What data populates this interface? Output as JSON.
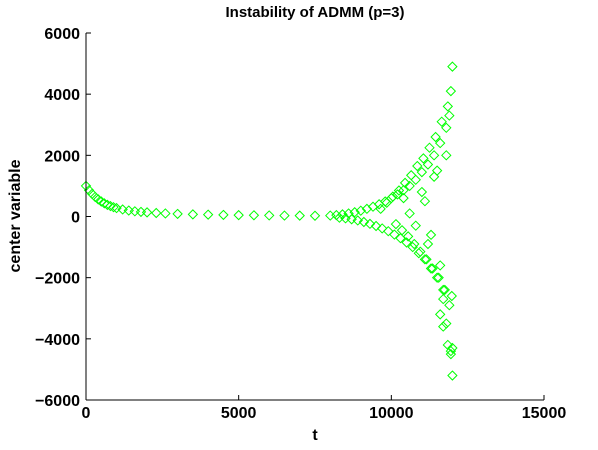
{
  "chart_data": {
    "type": "scatter",
    "title": "Instability of ADMM (p=3)",
    "xlabel": "t",
    "ylabel": "center variable",
    "xlim": [
      0,
      15000
    ],
    "ylim": [
      -6000,
      6000
    ],
    "x_ticks": [
      "0",
      "5000",
      "10000",
      "15000"
    ],
    "y_ticks": [
      "6000",
      "4000",
      "2000",
      "0",
      "−2000",
      "−4000",
      "−6000"
    ],
    "x_tick_values": [
      0,
      5000,
      10000,
      15000
    ],
    "y_tick_values": [
      6000,
      4000,
      2000,
      0,
      -2000,
      -4000,
      -6000
    ],
    "marker": "diamond",
    "grid": false,
    "legend": "none",
    "color": "#00ff00",
    "series": [
      {
        "x": [
          0,
          100,
          200,
          300,
          400,
          500,
          600,
          700,
          800,
          900,
          1000,
          1200,
          1400,
          1600,
          1800,
          2000,
          2300,
          2600,
          3000,
          3500,
          4000,
          4500,
          5000,
          5500,
          6000,
          6500,
          7000,
          7500,
          8000,
          8200,
          8400,
          8600,
          8800,
          9000,
          9200,
          9400,
          9600,
          9800,
          10000,
          10200,
          10400,
          10600,
          10800,
          11000,
          11200,
          11400,
          11600,
          11800,
          12000,
          8300,
          8500,
          8700,
          8900,
          9100,
          9300,
          9500,
          9700,
          9900,
          10100,
          10300,
          10500,
          10700,
          10900,
          11100,
          11300,
          11500,
          11700,
          11900,
          9650,
          9850,
          10050,
          10250,
          10450,
          10650,
          10850,
          11050,
          11250,
          11450,
          11650,
          11850,
          11950,
          10150,
          10350,
          10550,
          10750,
          10950,
          11150,
          11350,
          11550,
          11750,
          11980,
          10400,
          10600,
          10800,
          11000,
          11200,
          11400,
          11600,
          11800,
          12000,
          11100,
          11300,
          11500,
          11700,
          11900,
          11600,
          11800,
          11950,
          12000,
          11700,
          11850,
          11950
        ],
        "y": [
          1000,
          860,
          740,
          640,
          560,
          490,
          430,
          380,
          340,
          305,
          275,
          230,
          195,
          170,
          150,
          135,
          115,
          100,
          85,
          70,
          60,
          52,
          45,
          40,
          35,
          30,
          28,
          25,
          30,
          45,
          70,
          100,
          140,
          190,
          250,
          320,
          400,
          490,
          600,
          720,
          860,
          1000,
          1200,
          1450,
          1700,
          2000,
          2400,
          2900,
          4900,
          -40,
          -60,
          -90,
          -130,
          -180,
          -240,
          -310,
          -390,
          -480,
          -590,
          -710,
          -850,
          -1000,
          -1200,
          -1400,
          -1700,
          -2000,
          -2400,
          -2900,
          250,
          450,
          650,
          850,
          1100,
          1350,
          1650,
          1900,
          2250,
          2600,
          3100,
          3600,
          4100,
          -250,
          -450,
          -650,
          -900,
          -1150,
          -1400,
          -1700,
          -2000,
          -2400,
          -2600,
          600,
          100,
          -300,
          800,
          -900,
          1300,
          -1600,
          2000,
          -4300,
          500,
          -600,
          1500,
          -2700,
          3300,
          -3200,
          -3500,
          -4500,
          -5200,
          -3600,
          -4200,
          -4400
        ]
      }
    ]
  }
}
